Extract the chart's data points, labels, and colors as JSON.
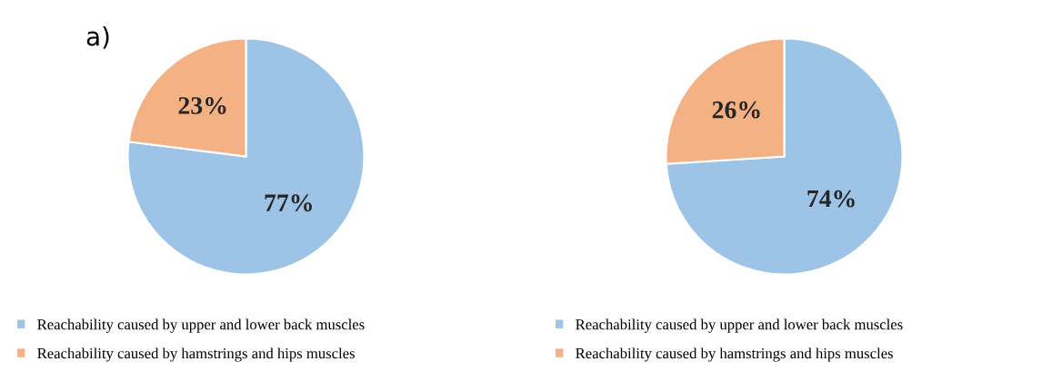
{
  "chart_data": [
    {
      "type": "pie",
      "title": "a)",
      "categories": [
        "Reachability caused by upper and lower back muscles",
        "Reachability caused by hamstrings and hips muscles"
      ],
      "values": [
        77,
        23
      ],
      "value_labels": [
        "77%",
        "23%"
      ],
      "colors": [
        "#9dc3e6",
        "#f4b183"
      ],
      "legend": "bottom"
    },
    {
      "type": "pie",
      "categories": [
        "Reachability caused by upper and lower back muscles",
        "Reachability caused by hamstrings and hips muscles"
      ],
      "values": [
        74,
        26
      ],
      "value_labels": [
        "74%",
        "26%"
      ],
      "colors": [
        "#9dc3e6",
        "#f4b183"
      ],
      "legend": "bottom"
    }
  ]
}
